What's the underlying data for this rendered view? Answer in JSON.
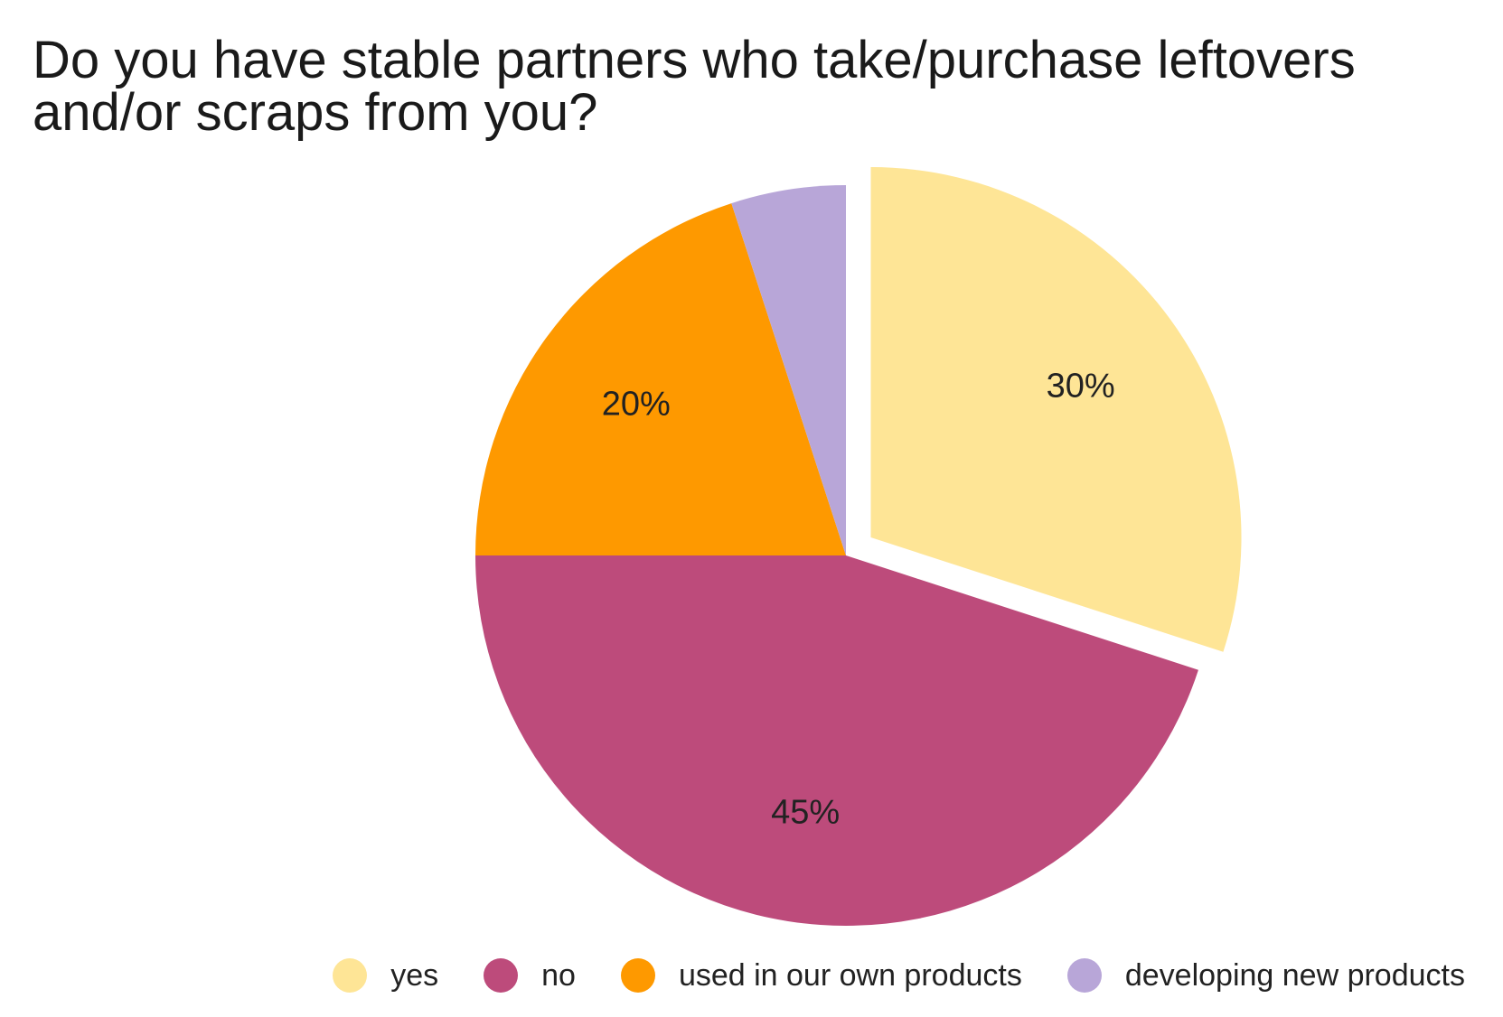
{
  "chart_data": {
    "type": "pie",
    "title": "Do you have stable partners who take/purchase leftovers and/or scraps from you?",
    "slices": [
      {
        "name": "yes",
        "value": 30,
        "label": "30%",
        "color": "#fee596",
        "exploded": true
      },
      {
        "name": "no",
        "value": 45,
        "label": "45%",
        "color": "#bd4b7b",
        "exploded": false
      },
      {
        "name": "used in our own products",
        "value": 20,
        "label": "20%",
        "color": "#fe9900",
        "exploded": false
      },
      {
        "name": "developing new products",
        "value": 5,
        "label": "",
        "color": "#b8a6d8",
        "exploded": false
      }
    ],
    "legend_position": "bottom"
  }
}
